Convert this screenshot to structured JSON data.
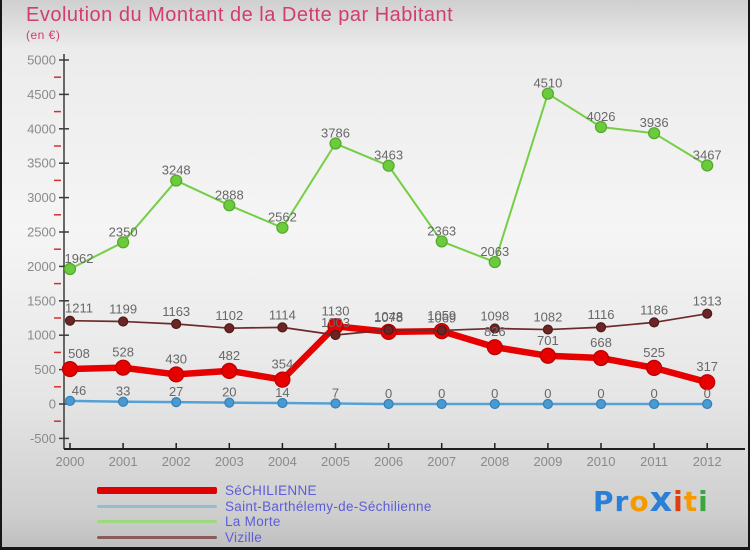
{
  "header": {
    "title": "Evolution du Montant de la Dette par Habitant",
    "subtitle": "(en €)",
    "title_color": "#d13d6e"
  },
  "chart_data": {
    "type": "line",
    "title": "Evolution du Montant de la Dette par Habitant",
    "unit": "en €",
    "x": [
      2000,
      2001,
      2002,
      2003,
      2004,
      2005,
      2006,
      2007,
      2008,
      2009,
      2010,
      2011,
      2012
    ],
    "series": [
      {
        "name": "SéCHILIENNE",
        "color": "#e60000",
        "dot_fill": "#e60000",
        "dot_edge": "#b80000",
        "line_width": 6.5,
        "dot_radius": 7.5,
        "label_dy": -11,
        "values": [
          508,
          528,
          430,
          482,
          354,
          1130,
          1048,
          1059,
          826,
          701,
          668,
          525,
          317
        ]
      },
      {
        "name": "Saint-Barthélemy-de-Séchilienne",
        "color": "#55a1d6",
        "dot_fill": "#4a9ad2",
        "dot_edge": "#3480b8",
        "line_width": 2.5,
        "dot_radius": 4.5,
        "label_dy": -6,
        "values": [
          46,
          33,
          27,
          20,
          14,
          7,
          0,
          0,
          0,
          0,
          0,
          0,
          0
        ]
      },
      {
        "name": "La Morte",
        "color": "#74cf45",
        "dot_fill": "#6bcb3c",
        "dot_edge": "#53a82a",
        "line_width": 2,
        "dot_radius": 5.5,
        "label_dy": -6,
        "values": [
          1962,
          2350,
          3248,
          2888,
          2562,
          3786,
          3463,
          2363,
          2063,
          4510,
          4026,
          3936,
          3467
        ]
      },
      {
        "name": "Vizille",
        "color": "#6d2a2a",
        "dot_fill": "#6b2525",
        "dot_edge": "#4f1b1b",
        "line_width": 1.7,
        "dot_radius": 4.5,
        "label_dy": -8,
        "values": [
          1211,
          1199,
          1163,
          1102,
          1114,
          1003,
          1078,
          1069,
          1098,
          1082,
          1116,
          1186,
          1313
        ]
      }
    ],
    "draw_order": [
      2,
      0,
      3,
      1
    ],
    "ylim": [
      -500,
      5000
    ],
    "y_tick_step": 500,
    "y_minor_step": 250,
    "y_tick_labels": [
      "-500",
      "0",
      "500",
      "1000",
      "1500",
      "2000",
      "2500",
      "3000",
      "3500",
      "4000",
      "4500",
      "5000"
    ],
    "grid": false,
    "legend_position": "bottom-left",
    "colors": {
      "point_label": "#686868",
      "axis": "#3b3b3b",
      "x_axis": "#1f1f1f",
      "tick_label": "#8a8a8a",
      "minor_tick": "#d03030"
    }
  },
  "legend": {
    "items": [
      {
        "id": "sechilienne",
        "label": "SéCHILIENNE",
        "swatch_color": "#e00000",
        "swatch_height": 7
      },
      {
        "id": "saint-barthelemy",
        "label": "Saint-Barthélemy-de-Séchilienne",
        "swatch_color": "#93bed2",
        "swatch_height": 3
      },
      {
        "id": "la-morte",
        "label": "La Morte",
        "swatch_color": "#9ed97f",
        "swatch_height": 3
      },
      {
        "id": "vizille",
        "label": "Vizille",
        "swatch_color": "#8b5a5a",
        "swatch_height": 3
      }
    ],
    "text_color": "#5d5dd8"
  },
  "logo": {
    "name": "Proxiti",
    "letters": [
      {
        "ch": "P",
        "color": "#2a7fd6",
        "big": false
      },
      {
        "ch": "r",
        "color": "#2a7fd6",
        "big": false
      },
      {
        "ch": "o",
        "color": "#f59a00",
        "big": false
      },
      {
        "ch": "x",
        "color": "#2a7fd6",
        "big": true
      },
      {
        "ch": "i",
        "color": "#e03c12",
        "big": false
      },
      {
        "ch": "t",
        "color": "#f59a00",
        "big": false
      },
      {
        "ch": "i",
        "color": "#3aa63c",
        "big": false
      }
    ]
  }
}
